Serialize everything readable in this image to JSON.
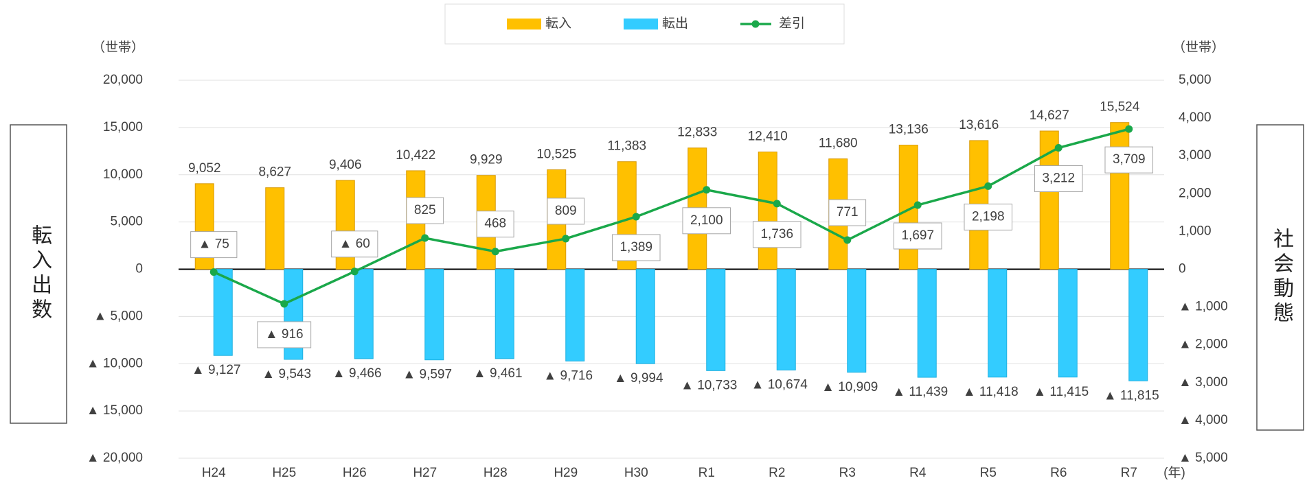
{
  "chart_data": {
    "type": "bar",
    "ylabel": "転入出数",
    "yunit": "（世帯）",
    "y2label": "社会動態",
    "y2unit": "（世帯）",
    "xunit": "(年)",
    "categories": [
      "H24",
      "H25",
      "H26",
      "H27",
      "H28",
      "H29",
      "H30",
      "R1",
      "R2",
      "R3",
      "R4",
      "R5",
      "R6",
      "R7"
    ],
    "series": [
      {
        "name": "転入",
        "type": "bar",
        "color": "#FFC000",
        "values": [
          9052,
          8627,
          9406,
          10422,
          9929,
          10525,
          11383,
          12833,
          12410,
          11680,
          13136,
          13616,
          14627,
          15524
        ],
        "value_labels": [
          "9,052",
          "8,627",
          "9,406",
          "10,422",
          "9,929",
          "10,525",
          "11,383",
          "12,833",
          "12,410",
          "11,680",
          "13,136",
          "13,616",
          "14,627",
          "15,524"
        ]
      },
      {
        "name": "転出",
        "type": "bar",
        "color": "#33CCFF",
        "values": [
          -9127,
          -9543,
          -9466,
          -9597,
          -9461,
          -9716,
          -9994,
          -10733,
          -10674,
          -10909,
          -11439,
          -11418,
          -11415,
          -11815
        ],
        "value_labels": [
          "▲ 9,127",
          "▲ 9,543",
          "▲ 9,466",
          "▲ 9,597",
          "▲ 9,461",
          "▲ 9,716",
          "▲ 9,994",
          "▲ 10,733",
          "▲ 10,674",
          "▲ 10,909",
          "▲ 11,439",
          "▲ 11,418",
          "▲ 11,415",
          "▲ 11,815"
        ]
      },
      {
        "name": "差引",
        "type": "line",
        "axis": "y2",
        "color": "#1AA84A",
        "values": [
          -75,
          -916,
          -60,
          825,
          468,
          809,
          1389,
          2100,
          1736,
          771,
          1697,
          2198,
          3212,
          3709
        ],
        "value_labels": [
          "▲ 75",
          "▲ 916",
          "▲ 60",
          "825",
          "468",
          "809",
          "1,389",
          "2,100",
          "1,736",
          "771",
          "1,697",
          "2,198",
          "3,212",
          "3,709"
        ]
      }
    ],
    "ylim": [
      -20000,
      20000
    ],
    "yticks": [
      {
        "value": -20000,
        "label": "▲ 20,000"
      },
      {
        "value": -15000,
        "label": "▲ 15,000"
      },
      {
        "value": -10000,
        "label": "▲ 10,000"
      },
      {
        "value": -5000,
        "label": "▲ 5,000"
      },
      0,
      {
        "value": 5000,
        "label": "5,000"
      },
      {
        "value": 10000,
        "label": "10,000"
      },
      {
        "value": 15000,
        "label": "15,000"
      },
      {
        "value": 20000,
        "label": "20,000"
      }
    ],
    "y2lim": [
      -5000,
      5000
    ],
    "y2ticks": [
      {
        "value": -5000,
        "label": "▲ 5,000"
      },
      {
        "value": -4000,
        "label": "▲ 4,000"
      },
      {
        "value": -3000,
        "label": "▲ 3,000"
      },
      {
        "value": -2000,
        "label": "▲ 2,000"
      },
      {
        "value": -1000,
        "label": "▲ 1,000"
      },
      0,
      {
        "value": 1000,
        "label": "1,000"
      },
      {
        "value": 2000,
        "label": "2,000"
      },
      {
        "value": 3000,
        "label": "3,000"
      },
      {
        "value": 4000,
        "label": "4,000"
      },
      {
        "value": 5000,
        "label": "5,000"
      }
    ],
    "grid": true,
    "legend": "top"
  }
}
